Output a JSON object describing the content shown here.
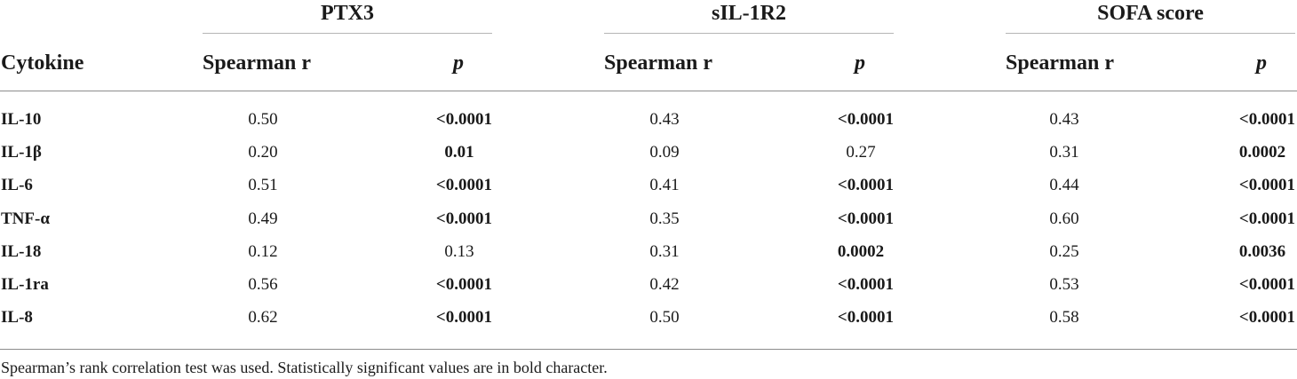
{
  "table": {
    "groups": [
      {
        "label": "PTX3"
      },
      {
        "label": "sIL-1R2"
      },
      {
        "label": "SOFA score"
      }
    ],
    "row_header_label": "Cytokine",
    "r_label": "Spearman r",
    "p_label": "p",
    "rows": [
      {
        "cytokine": "IL-10",
        "cells": [
          {
            "r": "0.50",
            "p": "<0.0001",
            "p_bold": true
          },
          {
            "r": "0.43",
            "p": "<0.0001",
            "p_bold": true
          },
          {
            "r": "0.43",
            "p": "<0.0001",
            "p_bold": true
          }
        ]
      },
      {
        "cytokine": "IL-1β",
        "cells": [
          {
            "r": "0.20",
            "p": "0.01",
            "p_bold": true
          },
          {
            "r": "0.09",
            "p": "0.27",
            "p_bold": false
          },
          {
            "r": "0.31",
            "p": "0.0002",
            "p_bold": true
          }
        ]
      },
      {
        "cytokine": "IL-6",
        "cells": [
          {
            "r": "0.51",
            "p": "<0.0001",
            "p_bold": true
          },
          {
            "r": "0.41",
            "p": "<0.0001",
            "p_bold": true
          },
          {
            "r": "0.44",
            "p": "<0.0001",
            "p_bold": true
          }
        ]
      },
      {
        "cytokine": "TNF-α",
        "cells": [
          {
            "r": "0.49",
            "p": "<0.0001",
            "p_bold": true
          },
          {
            "r": "0.35",
            "p": "<0.0001",
            "p_bold": true
          },
          {
            "r": "0.60",
            "p": "<0.0001",
            "p_bold": true
          }
        ]
      },
      {
        "cytokine": "IL-18",
        "cells": [
          {
            "r": "0.12",
            "p": "0.13",
            "p_bold": false
          },
          {
            "r": "0.31",
            "p": "0.0002",
            "p_bold": true
          },
          {
            "r": "0.25",
            "p": "0.0036",
            "p_bold": true
          }
        ]
      },
      {
        "cytokine": "IL-1ra",
        "cells": [
          {
            "r": "0.56",
            "p": "<0.0001",
            "p_bold": true
          },
          {
            "r": "0.42",
            "p": "<0.0001",
            "p_bold": true
          },
          {
            "r": "0.53",
            "p": "<0.0001",
            "p_bold": true
          }
        ]
      },
      {
        "cytokine": "IL-8",
        "cells": [
          {
            "r": "0.62",
            "p": "<0.0001",
            "p_bold": true
          },
          {
            "r": "0.50",
            "p": "<0.0001",
            "p_bold": true
          },
          {
            "r": "0.58",
            "p": "<0.0001",
            "p_bold": true
          }
        ]
      }
    ],
    "footnote": "Spearman’s rank correlation test was used. Statistically significant values are in bold character."
  }
}
